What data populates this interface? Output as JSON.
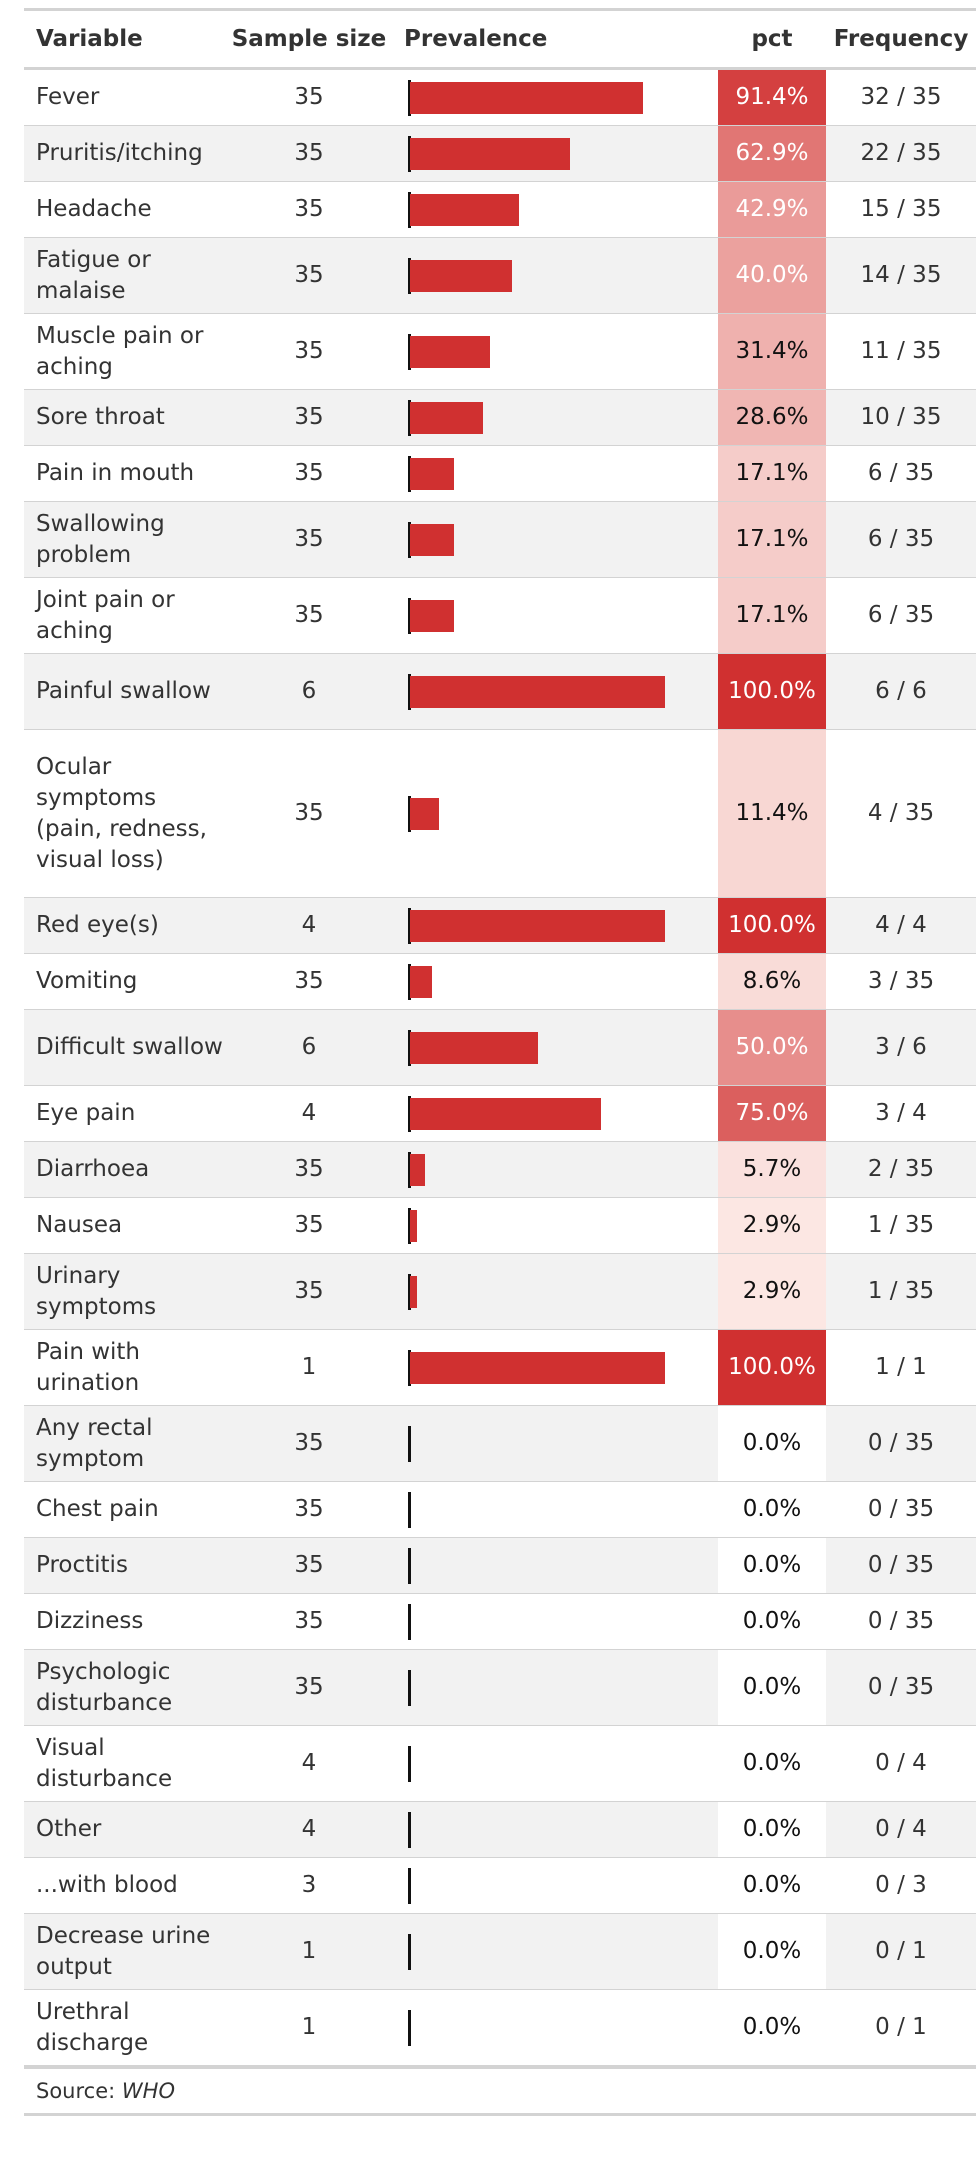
{
  "table": {
    "headers": {
      "variable": "Variable",
      "sample_size": "Sample size",
      "prevalence": "Prevalence",
      "pct": "pct",
      "frequency": "Frequency"
    },
    "source_label": "Source: ",
    "source_name": "WHO"
  },
  "colors": {
    "bar": "#d03030",
    "pct_high": "#d03030",
    "pct_zero": "#ffffff",
    "stripe": "#f2f2f2"
  },
  "chart_data": {
    "type": "table",
    "columns": [
      "Variable",
      "Sample size",
      "Prevalence",
      "pct",
      "Frequency"
    ],
    "rows": [
      {
        "variable": "Fever",
        "n": "35",
        "prevalence": 0.914,
        "pct": "91.4%",
        "freq": "32 / 35"
      },
      {
        "variable": "Pruritis/itching",
        "n": "35",
        "prevalence": 0.629,
        "pct": "62.9%",
        "freq": "22 / 35"
      },
      {
        "variable": "Headache",
        "n": "35",
        "prevalence": 0.429,
        "pct": "42.9%",
        "freq": "15 / 35"
      },
      {
        "variable": "Fatigue or malaise",
        "n": "35",
        "prevalence": 0.4,
        "pct": "40.0%",
        "freq": "14 / 35"
      },
      {
        "variable": "Muscle pain or aching",
        "n": "35",
        "prevalence": 0.314,
        "pct": "31.4%",
        "freq": "11 / 35"
      },
      {
        "variable": "Sore throat",
        "n": "35",
        "prevalence": 0.286,
        "pct": "28.6%",
        "freq": "10 / 35"
      },
      {
        "variable": "Pain in mouth",
        "n": "35",
        "prevalence": 0.171,
        "pct": "17.1%",
        "freq": "6 / 35"
      },
      {
        "variable": "Swallowing problem",
        "n": "35",
        "prevalence": 0.171,
        "pct": "17.1%",
        "freq": "6 / 35"
      },
      {
        "variable": "Joint pain or aching",
        "n": "35",
        "prevalence": 0.171,
        "pct": "17.1%",
        "freq": "6 / 35"
      },
      {
        "variable": "Painful swallow",
        "n": "6",
        "prevalence": 1.0,
        "pct": "100.0%",
        "freq": "6 / 6"
      },
      {
        "variable": "Ocular symptoms (pain, redness, visual loss)",
        "n": "35",
        "prevalence": 0.114,
        "pct": "11.4%",
        "freq": "4 / 35"
      },
      {
        "variable": "Red eye(s)",
        "n": "4",
        "prevalence": 1.0,
        "pct": "100.0%",
        "freq": "4 / 4"
      },
      {
        "variable": "Vomiting",
        "n": "35",
        "prevalence": 0.086,
        "pct": "8.6%",
        "freq": "3 / 35"
      },
      {
        "variable": "Difficult swallow",
        "n": "6",
        "prevalence": 0.5,
        "pct": "50.0%",
        "freq": "3 / 6"
      },
      {
        "variable": "Eye pain",
        "n": "4",
        "prevalence": 0.75,
        "pct": "75.0%",
        "freq": "3 / 4"
      },
      {
        "variable": "Diarrhoea",
        "n": "35",
        "prevalence": 0.057,
        "pct": "5.7%",
        "freq": "2 / 35"
      },
      {
        "variable": "Nausea",
        "n": "35",
        "prevalence": 0.029,
        "pct": "2.9%",
        "freq": "1 / 35"
      },
      {
        "variable": "Urinary symptoms",
        "n": "35",
        "prevalence": 0.029,
        "pct": "2.9%",
        "freq": "1 / 35"
      },
      {
        "variable": "Pain with urination",
        "n": "1",
        "prevalence": 1.0,
        "pct": "100.0%",
        "freq": "1 / 1"
      },
      {
        "variable": "Any rectal symptom",
        "n": "35",
        "prevalence": 0.0,
        "pct": "0.0%",
        "freq": "0 / 35"
      },
      {
        "variable": "Chest pain",
        "n": "35",
        "prevalence": 0.0,
        "pct": "0.0%",
        "freq": "0 / 35"
      },
      {
        "variable": "Proctitis",
        "n": "35",
        "prevalence": 0.0,
        "pct": "0.0%",
        "freq": "0 / 35"
      },
      {
        "variable": "Dizziness",
        "n": "35",
        "prevalence": 0.0,
        "pct": "0.0%",
        "freq": "0 / 35"
      },
      {
        "variable": "Psychologic disturbance",
        "n": "35",
        "prevalence": 0.0,
        "pct": "0.0%",
        "freq": "0 / 35"
      },
      {
        "variable": "Visual disturbance",
        "n": "4",
        "prevalence": 0.0,
        "pct": "0.0%",
        "freq": "0 / 4"
      },
      {
        "variable": "Other",
        "n": "4",
        "prevalence": 0.0,
        "pct": "0.0%",
        "freq": "0 / 4"
      },
      {
        "variable": "...with blood",
        "n": "3",
        "prevalence": 0.0,
        "pct": "0.0%",
        "freq": "0 / 3"
      },
      {
        "variable": "Decrease urine output",
        "n": "1",
        "prevalence": 0.0,
        "pct": "0.0%",
        "freq": "0 / 1"
      },
      {
        "variable": "Urethral discharge",
        "n": "1",
        "prevalence": 0.0,
        "pct": "0.0%",
        "freq": "0 / 1"
      }
    ]
  }
}
